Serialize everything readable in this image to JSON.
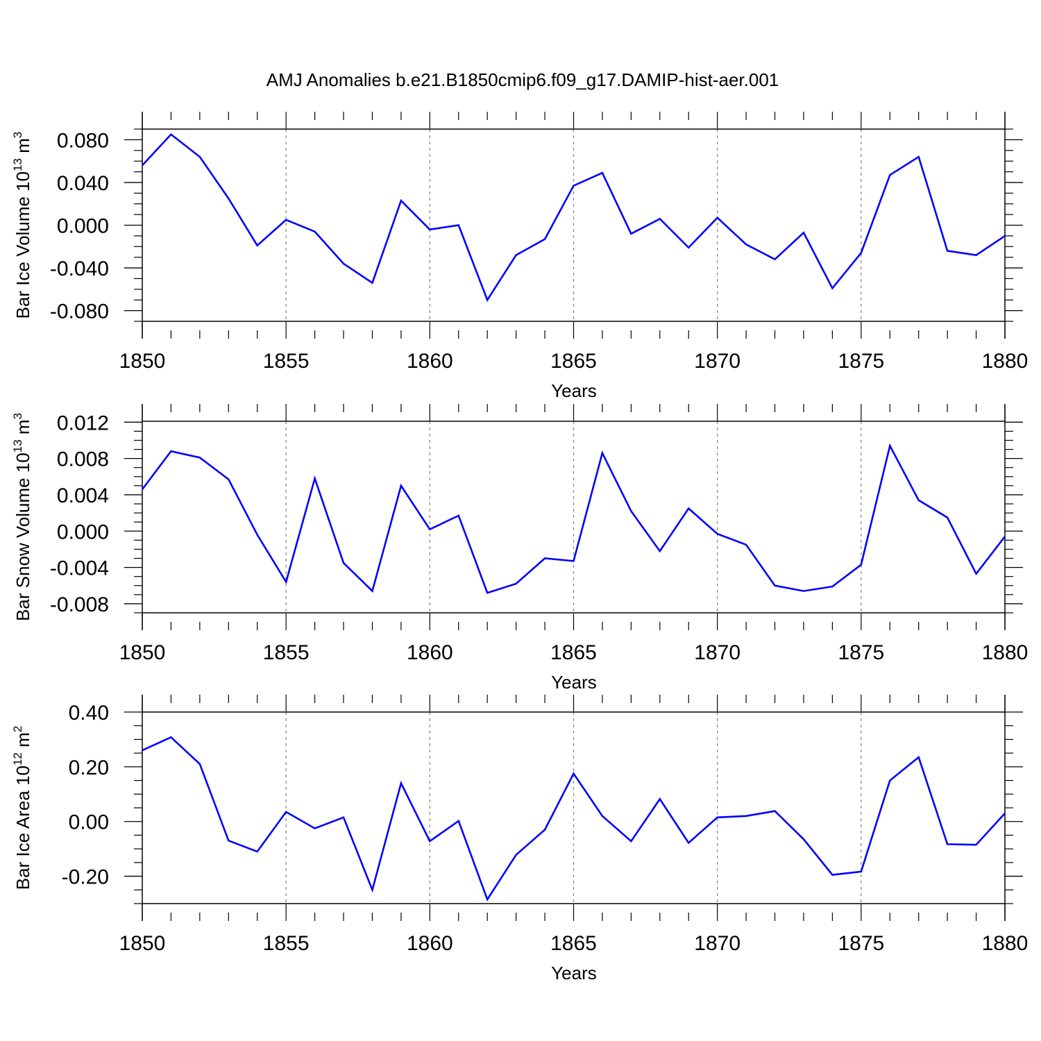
{
  "figure_title": "AMJ Anomalies b.e21.B1850cmip6.f09_g17.DAMIP-hist-aer.001",
  "line_color": "#0000ff",
  "chart_data": [
    {
      "type": "line",
      "title": "",
      "ylabel": {
        "text": "Bar Ice Volume 10",
        "exp": "13",
        "unit": " m",
        "unit_exp": "3"
      },
      "xlabel": "Years",
      "xlim": [
        1850,
        1880
      ],
      "ylim": [
        -0.09,
        0.09
      ],
      "yticks": [
        -0.08,
        -0.04,
        0.0,
        0.04,
        0.08
      ],
      "ytick_labels": [
        "-0.080",
        "-0.040",
        "0.000",
        "0.040",
        "0.080"
      ],
      "xticks": [
        1850,
        1855,
        1860,
        1865,
        1870,
        1875,
        1880
      ],
      "xtick_labels": [
        "1850",
        "1855",
        "1860",
        "1865",
        "1870",
        "1875",
        "1880"
      ],
      "grid": "dashed vertical at major x ticks",
      "series": [
        {
          "x": [
            1850,
            1851,
            1852,
            1853,
            1854,
            1855,
            1856,
            1857,
            1858,
            1859,
            1860,
            1861,
            1862,
            1863,
            1864,
            1865,
            1866,
            1867,
            1868,
            1869,
            1870,
            1871,
            1872,
            1873,
            1874,
            1875,
            1876,
            1877,
            1878,
            1879,
            1880
          ],
          "values": [
            0.056,
            0.085,
            0.064,
            0.025,
            -0.019,
            0.005,
            -0.006,
            -0.036,
            -0.054,
            0.023,
            -0.004,
            0.0,
            -0.07,
            -0.028,
            -0.013,
            0.037,
            0.049,
            -0.008,
            0.006,
            -0.021,
            0.007,
            -0.018,
            -0.032,
            -0.007,
            -0.059,
            -0.026,
            0.047,
            0.064,
            -0.024,
            -0.028,
            -0.01
          ]
        }
      ]
    },
    {
      "type": "line",
      "title": "",
      "ylabel": {
        "text": "Bar Snow Volume 10",
        "exp": "13",
        "unit": " m",
        "unit_exp": "3"
      },
      "xlabel": "Years",
      "xlim": [
        1850,
        1880
      ],
      "ylim": [
        -0.009,
        0.0121
      ],
      "yticks": [
        -0.008,
        -0.004,
        0.0,
        0.004,
        0.008,
        0.012
      ],
      "ytick_labels": [
        "-0.008",
        "-0.004",
        "0.000",
        "0.004",
        "0.008",
        "0.012"
      ],
      "xticks": [
        1850,
        1855,
        1860,
        1865,
        1870,
        1875,
        1880
      ],
      "xtick_labels": [
        "1850",
        "1855",
        "1860",
        "1865",
        "1870",
        "1875",
        "1880"
      ],
      "grid": "dashed vertical at major x ticks",
      "series": [
        {
          "x": [
            1850,
            1851,
            1852,
            1853,
            1854,
            1855,
            1856,
            1857,
            1858,
            1859,
            1860,
            1861,
            1862,
            1863,
            1864,
            1865,
            1866,
            1867,
            1868,
            1869,
            1870,
            1871,
            1872,
            1873,
            1874,
            1875,
            1876,
            1877,
            1878,
            1879,
            1880
          ],
          "values": [
            0.0046,
            0.0088,
            0.0081,
            0.0057,
            -0.0004,
            -0.0056,
            0.0058,
            -0.0035,
            -0.0066,
            0.005,
            0.0002,
            0.0017,
            -0.0068,
            -0.0058,
            -0.003,
            -0.0033,
            0.0086,
            0.0022,
            -0.0022,
            0.0025,
            -0.0003,
            -0.0015,
            -0.006,
            -0.0066,
            -0.0061,
            -0.0037,
            0.0094,
            0.0034,
            0.0015,
            -0.0047,
            -0.0006
          ]
        }
      ]
    },
    {
      "type": "line",
      "title": "",
      "ylabel": {
        "text": "Bar Ice Area 10",
        "exp": "12",
        "unit": " m",
        "unit_exp": "2"
      },
      "xlabel": "Years",
      "xlim": [
        1850,
        1880
      ],
      "ylim": [
        -0.3,
        0.4
      ],
      "yticks": [
        -0.2,
        0.0,
        0.2,
        0.4
      ],
      "ytick_labels": [
        "-0.20",
        "0.00",
        "0.20",
        "0.40"
      ],
      "xticks": [
        1850,
        1855,
        1860,
        1865,
        1870,
        1875,
        1880
      ],
      "xtick_labels": [
        "1850",
        "1855",
        "1860",
        "1865",
        "1870",
        "1875",
        "1880"
      ],
      "grid": "dashed vertical at major x ticks",
      "series": [
        {
          "x": [
            1850,
            1851,
            1852,
            1853,
            1854,
            1855,
            1856,
            1857,
            1858,
            1859,
            1860,
            1861,
            1862,
            1863,
            1864,
            1865,
            1866,
            1867,
            1868,
            1869,
            1870,
            1871,
            1872,
            1873,
            1874,
            1875,
            1876,
            1877,
            1878,
            1879,
            1880
          ],
          "values": [
            0.26,
            0.308,
            0.21,
            -0.07,
            -0.11,
            0.035,
            -0.025,
            0.015,
            -0.25,
            0.14,
            -0.072,
            0.002,
            -0.285,
            -0.122,
            -0.03,
            0.175,
            0.02,
            -0.072,
            0.082,
            -0.078,
            0.015,
            0.02,
            0.038,
            -0.065,
            -0.195,
            -0.183,
            0.15,
            0.235,
            -0.083,
            -0.085,
            0.03
          ]
        }
      ]
    }
  ]
}
